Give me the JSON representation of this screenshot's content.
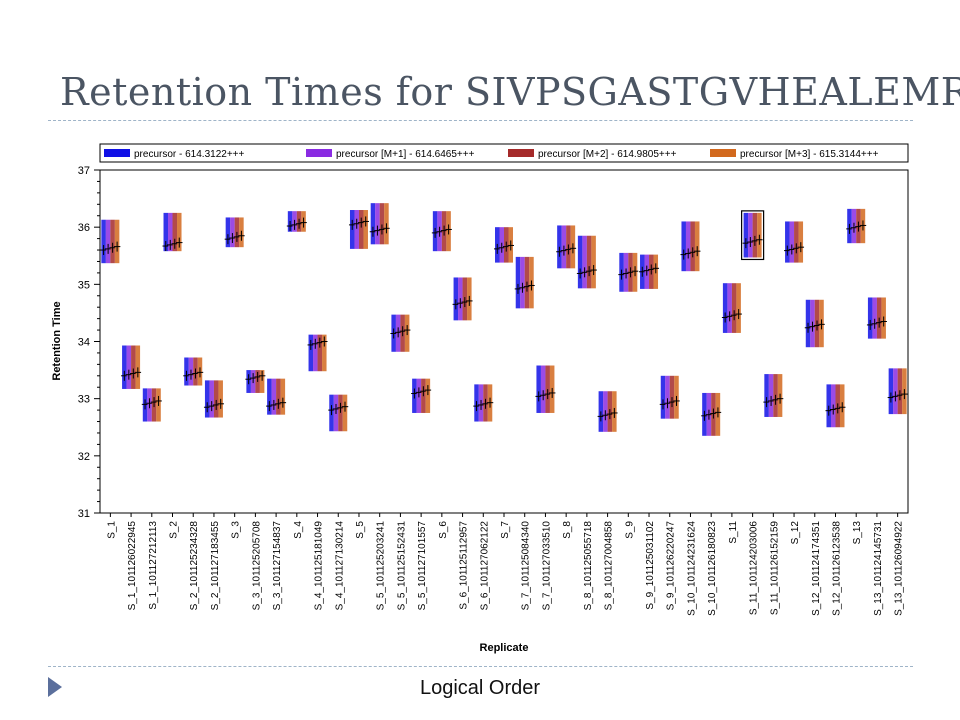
{
  "slide": {
    "title": "Retention Times for SIVPSGASTGVHEALEMR",
    "footer": "Logical Order"
  },
  "chart_data": {
    "type": "box",
    "xlabel": "Replicate",
    "ylabel": "Retention Time",
    "ylim": [
      31,
      37
    ],
    "yticks": [
      31,
      32,
      33,
      34,
      35,
      36,
      37
    ],
    "grid": false,
    "legend_position": "top",
    "legend": [
      {
        "label": "precursor - 614.3122+++",
        "color": "#1010e6"
      },
      {
        "label": "precursor [M+1] - 614.6465+++",
        "color": "#8a2be2"
      },
      {
        "label": "precursor [M+2] - 614.9805+++",
        "color": "#a52a2a"
      },
      {
        "label": "precursor [M+3] - 615.3144+++",
        "color": "#d2691e"
      }
    ],
    "categories": [
      "S_1",
      "S_1_101126022945",
      "S_1_101127212113",
      "S_2",
      "S_2_101125234328",
      "S_2_101127183455",
      "S_3",
      "S_3_101125205708",
      "S_3_101127154837",
      "S_4",
      "S_4_101125181049",
      "S_4_101127130214",
      "S_5",
      "S_5_101125203241",
      "S_5_101125152431",
      "S_5_101127101557",
      "S_6",
      "S_6_101125112957",
      "S_6_101127062122",
      "S_7",
      "S_7_101125084340",
      "S_7_101127033510",
      "S_8",
      "S_8_101125055718",
      "S_8_101127004858",
      "S_9",
      "S_9_101125031102",
      "S_9_101126220247",
      "S_10_101124231624",
      "S_10_101126180823",
      "S_11",
      "S_11_101124203006",
      "S_11_101126152159",
      "S_12",
      "S_12_101124174351",
      "S_12_101126123538",
      "S_13",
      "S_13_101124145731",
      "S_13_101126094922"
    ],
    "series": [
      {
        "points": [
          {
            "min": 35.37,
            "max": 36.13,
            "rt": 35.63
          },
          {
            "min": 33.17,
            "max": 33.93,
            "rt": 33.43
          },
          {
            "min": 32.6,
            "max": 33.18,
            "rt": 32.93
          },
          {
            "min": 35.58,
            "max": 36.25,
            "rt": 35.7
          },
          {
            "min": 33.23,
            "max": 33.72,
            "rt": 33.43
          },
          {
            "min": 32.67,
            "max": 33.32,
            "rt": 32.88
          },
          {
            "min": 35.65,
            "max": 36.17,
            "rt": 35.82
          },
          {
            "min": 33.1,
            "max": 33.5,
            "rt": 33.37
          },
          {
            "min": 32.72,
            "max": 33.35,
            "rt": 32.9
          },
          {
            "min": 35.92,
            "max": 36.28,
            "rt": 36.05
          },
          {
            "min": 33.48,
            "max": 34.12,
            "rt": 33.97
          },
          {
            "min": 32.43,
            "max": 33.07,
            "rt": 32.83
          },
          {
            "min": 35.62,
            "max": 36.3,
            "rt": 36.07
          },
          {
            "min": 35.7,
            "max": 36.42,
            "rt": 35.95
          },
          {
            "min": 33.82,
            "max": 34.47,
            "rt": 34.17
          },
          {
            "min": 32.75,
            "max": 33.35,
            "rt": 33.12
          },
          {
            "min": 35.58,
            "max": 36.28,
            "rt": 35.93
          },
          {
            "min": 34.37,
            "max": 35.12,
            "rt": 34.68
          },
          {
            "min": 32.6,
            "max": 33.25,
            "rt": 32.9
          },
          {
            "min": 35.38,
            "max": 36.0,
            "rt": 35.65
          },
          {
            "min": 34.58,
            "max": 35.48,
            "rt": 34.95
          },
          {
            "min": 32.75,
            "max": 33.58,
            "rt": 33.07
          },
          {
            "min": 35.28,
            "max": 36.03,
            "rt": 35.6
          },
          {
            "min": 34.93,
            "max": 35.85,
            "rt": 35.22
          },
          {
            "min": 32.42,
            "max": 33.13,
            "rt": 32.72
          },
          {
            "min": 34.87,
            "max": 35.55,
            "rt": 35.2
          },
          {
            "min": 34.92,
            "max": 35.52,
            "rt": 35.25
          },
          {
            "min": 32.65,
            "max": 33.4,
            "rt": 32.93
          },
          {
            "min": 35.23,
            "max": 36.1,
            "rt": 35.55
          },
          {
            "min": 32.35,
            "max": 33.1,
            "rt": 32.73
          },
          {
            "min": 34.15,
            "max": 35.02,
            "rt": 34.45
          },
          {
            "min": 35.47,
            "max": 36.25,
            "rt": 35.75
          },
          {
            "min": 32.68,
            "max": 33.43,
            "rt": 32.97
          },
          {
            "min": 35.38,
            "max": 36.1,
            "rt": 35.62
          },
          {
            "min": 33.9,
            "max": 34.73,
            "rt": 34.27
          },
          {
            "min": 32.5,
            "max": 33.25,
            "rt": 32.82
          },
          {
            "min": 35.72,
            "max": 36.32,
            "rt": 36.0
          },
          {
            "min": 34.05,
            "max": 34.77,
            "rt": 34.32
          },
          {
            "min": 32.73,
            "max": 33.53,
            "rt": 33.05
          }
        ]
      }
    ],
    "selected_index": 31
  }
}
